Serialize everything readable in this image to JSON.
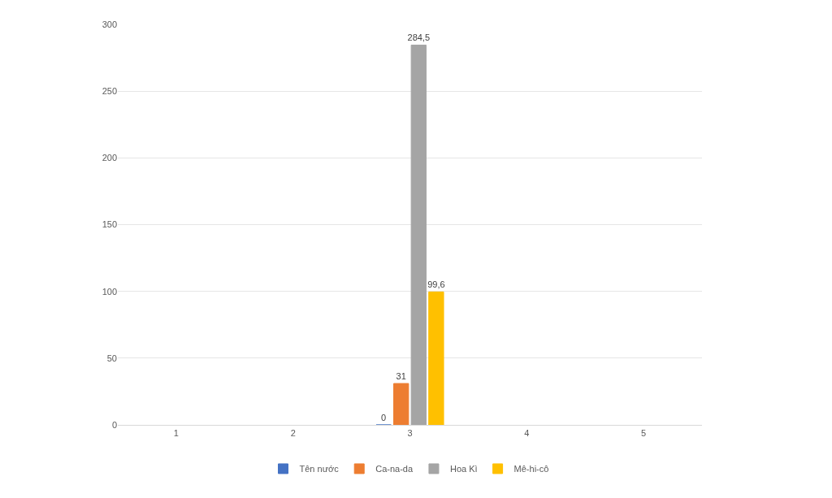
{
  "chart_data": {
    "type": "bar",
    "categories": [
      "1",
      "2",
      "3",
      "4",
      "5"
    ],
    "series": [
      {
        "name": "Tên nước",
        "color": "#4472c4",
        "values": [
          null,
          null,
          0,
          null,
          null
        ],
        "value_labels": [
          null,
          null,
          "0",
          null,
          null
        ]
      },
      {
        "name": "Ca-na-da",
        "color": "#ed7d31",
        "values": [
          null,
          null,
          31,
          null,
          null
        ],
        "value_labels": [
          null,
          null,
          "31",
          null,
          null
        ]
      },
      {
        "name": "Hoa Kì",
        "color": "#a5a5a5",
        "values": [
          null,
          null,
          284.5,
          null,
          null
        ],
        "value_labels": [
          null,
          null,
          "284,5",
          null,
          null
        ]
      },
      {
        "name": "Mê-hi-cô",
        "color": "#ffc000",
        "values": [
          null,
          null,
          99.6,
          null,
          null
        ],
        "value_labels": [
          null,
          null,
          "99,6",
          null,
          null
        ]
      }
    ],
    "ylim": [
      0,
      300
    ],
    "yticks": [
      0,
      50,
      100,
      150,
      200,
      250,
      300
    ],
    "grid": "y",
    "legend": "bottom"
  }
}
